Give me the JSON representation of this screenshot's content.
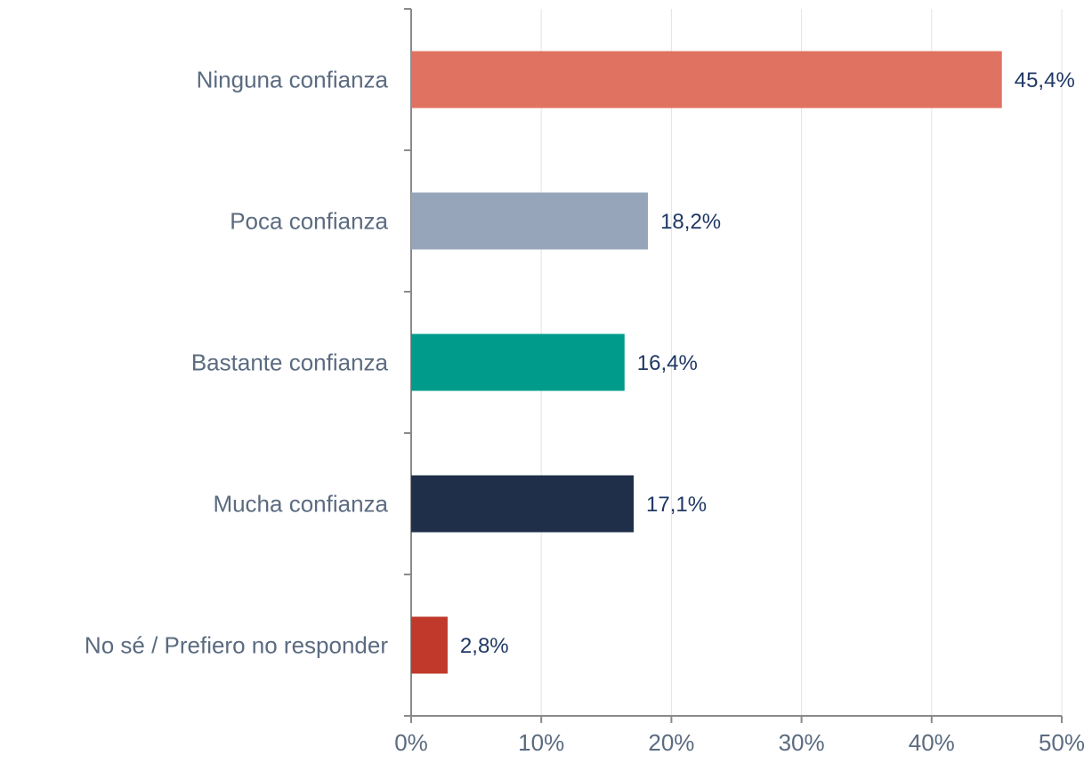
{
  "chart_data": {
    "type": "bar",
    "orientation": "horizontal",
    "categories": [
      "Ninguna confianza",
      "Poca confianza",
      "Bastante confianza",
      "Mucha confianza",
      "No sé / Prefiero no responder"
    ],
    "values": [
      45.4,
      18.2,
      16.4,
      17.1,
      2.8
    ],
    "value_labels": [
      "45,4%",
      "18,2%",
      "16,4%",
      "17,1%",
      "2,8%"
    ],
    "colors": [
      "#e07262",
      "#96a5b9",
      "#009b8a",
      "#1f2f4a",
      "#c0392b"
    ],
    "xlim": [
      0,
      50
    ],
    "xticks": [
      {
        "value": 0,
        "label": "0%"
      },
      {
        "value": 10,
        "label": "10%"
      },
      {
        "value": 20,
        "label": "20%"
      },
      {
        "value": 30,
        "label": "30%"
      },
      {
        "value": 40,
        "label": "40%"
      },
      {
        "value": 50,
        "label": "50%"
      }
    ],
    "grid": true
  }
}
